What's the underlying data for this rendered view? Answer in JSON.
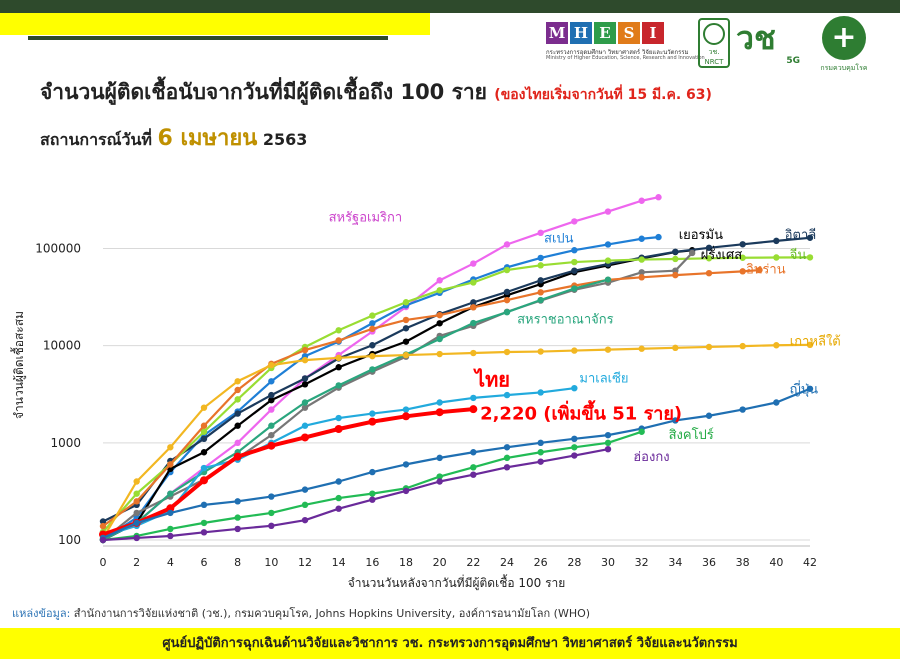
{
  "header": {
    "title": "จำนวนผู้ติดเชื้อนับจากวันที่มีผู้ติดเชื้อถึง 100 ราย",
    "title_note": "(ของไทยเริ่มจากวันที่ 15 มี.ค. 63)",
    "subtitle_prefix": "สถานการณ์วันที่",
    "subtitle_date": "6 เมษายน",
    "subtitle_year": "2563"
  },
  "logos": {
    "mhesi_letters": [
      "M",
      "H",
      "E",
      "S",
      "I"
    ],
    "mhesi_colors": [
      "#7b2d8e",
      "#1f6fb2",
      "#2e9c4a",
      "#e07b1a",
      "#c8262c"
    ],
    "mhesi_line1": "กระทรวงการอุดมศึกษา วิทยาศาสตร์ วิจัยและนวัตกรรม",
    "mhesi_line2": "Ministry of Higher Education, Science, Research and Innovation",
    "nrct_label": "วช.",
    "nrct_sub": "NRCT",
    "vch_label": "วช",
    "vch_5g": "5G",
    "ddc_label": "กรมควบคุมโรค"
  },
  "source": {
    "label": "แหล่งข้อมูล:",
    "text": "สำนักงานการวิจัยแห่งชาติ (วช.), กรมควบคุมโรค, Johns Hopkins University, องค์การอนามัยโลก (WHO)"
  },
  "footer": {
    "text": "ศูนย์ปฏิบัติการฉุกเฉินด้านวิจัยและวิชาการ   วช.   กระทรวงการอุดมศึกษา วิทยาศาสตร์ วิจัยและนวัตกรรม"
  },
  "chart_data": {
    "type": "line",
    "ylabel": "จำนวนผู้ติดเชื้อสะสม",
    "xlabel": "จำนวนวันหลังจากวันที่มีผู้ติดเชื้อ 100 ราย",
    "y_scale": "log",
    "ylim": [
      100,
      400000
    ],
    "xlim": [
      0,
      42
    ],
    "x_ticks": [
      0,
      2,
      4,
      6,
      8,
      10,
      12,
      14,
      16,
      18,
      20,
      22,
      24,
      26,
      28,
      30,
      32,
      34,
      36,
      38,
      40,
      42
    ],
    "y_ticks": [
      100,
      1000,
      10000,
      100000
    ],
    "y_tick_labels": [
      "100",
      "1000",
      "10000",
      "100000"
    ],
    "grid": true,
    "thailand_annotation": "2,220 (เพิ่มขึ้น 51 ราย)",
    "series": [
      {
        "name": "สหรัฐอเมริกา",
        "color": "#ee66ee",
        "label_x": 13.4,
        "label_y": 190000,
        "label_color": "#cc44cc",
        "x": [
          0,
          2,
          4,
          6,
          8,
          10,
          12,
          14,
          16,
          18,
          20,
          22,
          24,
          26,
          28,
          30,
          32,
          33
        ],
        "y": [
          100,
          150,
          300,
          550,
          1000,
          2200,
          4600,
          8000,
          14000,
          25000,
          47000,
          70000,
          110000,
          145000,
          190000,
          240000,
          310000,
          337000
        ]
      },
      {
        "name": "สเปน",
        "color": "#1f7fd6",
        "label_x": 26.2,
        "label_y": 115000,
        "label_color": "#1f7fd6",
        "x": [
          0,
          2,
          4,
          6,
          8,
          10,
          12,
          14,
          16,
          18,
          20,
          22,
          24,
          26,
          28,
          30,
          32,
          33
        ],
        "y": [
          100,
          170,
          500,
          1200,
          2100,
          4300,
          7800,
          11000,
          17000,
          26000,
          35000,
          48000,
          64000,
          80000,
          96000,
          110000,
          126000,
          131000
        ]
      },
      {
        "name": "เยอรมัน",
        "color": "#000000",
        "label_x": 34.2,
        "label_y": 125000,
        "label_color": "#000000",
        "x": [
          0,
          2,
          4,
          6,
          8,
          10,
          12,
          14,
          16,
          18,
          20,
          22,
          24,
          26,
          28,
          30,
          32,
          34,
          35
        ],
        "y": [
          100,
          150,
          540,
          800,
          1500,
          2750,
          4000,
          6000,
          8200,
          11000,
          17000,
          25000,
          33000,
          43000,
          57000,
          67000,
          79000,
          92000,
          96000
        ]
      },
      {
        "name": "อิตาลี",
        "color": "#1b3a5c",
        "label_x": 40.5,
        "label_y": 125000,
        "label_color": "#1b3a5c",
        "x": [
          0,
          2,
          4,
          6,
          8,
          10,
          12,
          14,
          16,
          18,
          20,
          22,
          24,
          26,
          28,
          30,
          32,
          34,
          36,
          38,
          40,
          42
        ],
        "y": [
          155,
          230,
          650,
          1100,
          2000,
          3100,
          4600,
          7400,
          10100,
          15100,
          21100,
          27900,
          35700,
          47000,
          59100,
          69100,
          80500,
          92500,
          101700,
          110500,
          119800,
          128900
        ]
      },
      {
        "name": "จีน",
        "color": "#99dd33",
        "label_x": 40.8,
        "label_y": 78000,
        "label_color": "#66bb22",
        "x": [
          0,
          2,
          4,
          6,
          8,
          10,
          12,
          14,
          16,
          18,
          20,
          22,
          24,
          26,
          28,
          30,
          32,
          34,
          36,
          38,
          40,
          42
        ],
        "y": [
          121,
          300,
          600,
          1300,
          2800,
          5900,
          9700,
          14400,
          20400,
          28000,
          37100,
          44700,
          60000,
          67100,
          72500,
          75100,
          76900,
          78000,
          79300,
          80300,
          80800,
          81000
        ]
      },
      {
        "name": "ฝรั่งเศส",
        "color": "#777777",
        "label_x": 35.5,
        "label_y": 78000,
        "label_color": "#000000",
        "x": [
          0,
          2,
          4,
          6,
          8,
          10,
          12,
          14,
          16,
          18,
          20,
          22,
          24,
          26,
          28,
          30,
          32,
          34,
          35
        ],
        "y": [
          100,
          190,
          280,
          420,
          700,
          1200,
          2300,
          3700,
          5400,
          7700,
          12600,
          16000,
          22300,
          29100,
          37600,
          44500,
          56900,
          59100,
          90000
        ]
      },
      {
        "name": "อิหร่าน",
        "color": "#e8742a",
        "label_x": 38.2,
        "label_y": 55000,
        "label_color": "#e8742a",
        "x": [
          0,
          2,
          4,
          6,
          8,
          10,
          12,
          14,
          16,
          18,
          20,
          22,
          24,
          26,
          28,
          30,
          32,
          34,
          36,
          38,
          39
        ],
        "y": [
          139,
          250,
          600,
          1500,
          3500,
          6500,
          9000,
          11300,
          14900,
          18400,
          20600,
          24800,
          29400,
          35400,
          41500,
          47600,
          50500,
          53200,
          55700,
          58200,
          60000
        ]
      },
      {
        "name": "สหราชอาณาจักร",
        "color": "#2aa67e",
        "label_x": 24.6,
        "label_y": 17000,
        "label_color": "#2aa67e",
        "x": [
          0,
          2,
          4,
          6,
          8,
          10,
          12,
          14,
          16,
          18,
          20,
          22,
          24,
          26,
          28,
          30
        ],
        "y": [
          100,
          150,
          300,
          500,
          800,
          1500,
          2600,
          3900,
          5700,
          8100,
          11700,
          17100,
          22100,
          29500,
          38700,
          47800
        ]
      },
      {
        "name": "เกาหลีใต้",
        "color": "#f2b722",
        "label_x": 40.8,
        "label_y": 10000,
        "label_color": "#e6a800",
        "x": [
          0,
          2,
          4,
          6,
          8,
          10,
          12,
          14,
          16,
          18,
          20,
          22,
          24,
          26,
          28,
          30,
          32,
          34,
          36,
          38,
          40,
          42
        ],
        "y": [
          104,
          400,
          900,
          2300,
          4300,
          6300,
          7100,
          7500,
          7800,
          8000,
          8200,
          8400,
          8600,
          8700,
          8900,
          9100,
          9300,
          9500,
          9700,
          9900,
          10100,
          10200
        ]
      },
      {
        "name": "มาเลเซีย",
        "color": "#22aadd",
        "label_x": 28.3,
        "label_y": 4200,
        "label_color": "#22aadd",
        "x": [
          0,
          2,
          4,
          6,
          8,
          10,
          12,
          14,
          16,
          18,
          20,
          22,
          24,
          26,
          28
        ],
        "y": [
          110,
          140,
          200,
          550,
          670,
          1000,
          1500,
          1800,
          2000,
          2200,
          2600,
          2900,
          3100,
          3300,
          3650
        ]
      },
      {
        "name": "ไทย",
        "color": "#ff0000",
        "label_x": 22.1,
        "label_y": 3800,
        "label_color": "#ff0000",
        "x": [
          0,
          2,
          4,
          6,
          8,
          10,
          12,
          14,
          16,
          18,
          20,
          22
        ],
        "y": [
          114,
          150,
          212,
          411,
          721,
          934,
          1136,
          1388,
          1651,
          1875,
          2067,
          2220
        ]
      },
      {
        "name": "ญี่ปุ่น",
        "color": "#1f6fb2",
        "label_x": 40.8,
        "label_y": 3200,
        "label_color": "#1f6fb2",
        "x": [
          0,
          2,
          4,
          6,
          8,
          10,
          12,
          14,
          16,
          18,
          20,
          22,
          24,
          26,
          28,
          30,
          32,
          34,
          36,
          38,
          40,
          42
        ],
        "y": [
          105,
          150,
          190,
          230,
          250,
          280,
          330,
          400,
          500,
          600,
          700,
          800,
          900,
          1000,
          1100,
          1200,
          1400,
          1700,
          1900,
          2200,
          2600,
          3600
        ]
      },
      {
        "name": "สิงคโปร์",
        "color": "#22bb55",
        "label_x": 33.6,
        "label_y": 1100,
        "label_color": "#22aa44",
        "x": [
          0,
          2,
          4,
          6,
          8,
          10,
          12,
          14,
          16,
          18,
          20,
          22,
          24,
          26,
          28,
          30,
          32
        ],
        "y": [
          100,
          110,
          130,
          150,
          170,
          190,
          230,
          270,
          300,
          340,
          450,
          560,
          700,
          800,
          900,
          1000,
          1300
        ]
      },
      {
        "name": "ฮ่องกง",
        "color": "#6a2a9a",
        "label_x": 31.5,
        "label_y": 650,
        "label_color": "#6a2a9a",
        "x": [
          0,
          2,
          4,
          6,
          8,
          10,
          12,
          14,
          16,
          18,
          20,
          22,
          24,
          26,
          28,
          30
        ],
        "y": [
          100,
          105,
          110,
          120,
          130,
          140,
          160,
          210,
          260,
          320,
          400,
          470,
          560,
          640,
          740,
          860
        ]
      }
    ]
  }
}
